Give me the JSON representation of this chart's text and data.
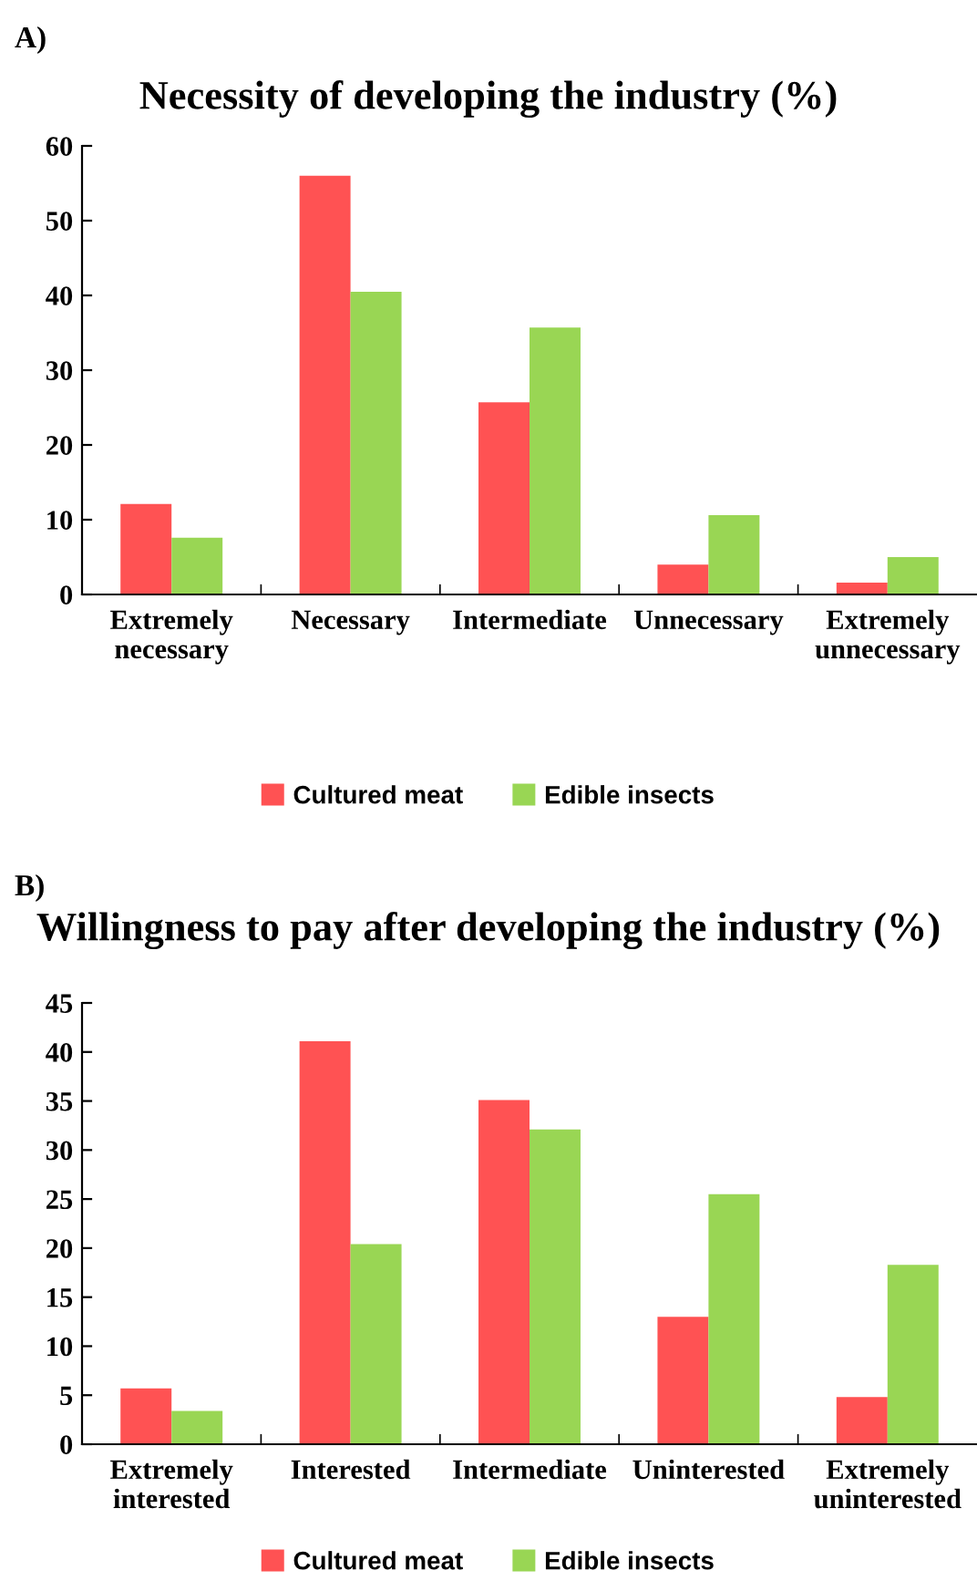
{
  "chart_data": [
    {
      "type": "bar",
      "title": "Necessity of developing the industry (%)",
      "annotations": [
        "A)"
      ],
      "categories": [
        "Extremely\nnecessary",
        "Necessary",
        "Intermediate",
        "Unnecessary",
        "Extremely\nunnecessary"
      ],
      "series": [
        {
          "name": "Cultured meat",
          "color": "#ff5253",
          "values": [
            12.1,
            56,
            25.7,
            4,
            1.6
          ]
        },
        {
          "name": "Edible insects",
          "color": "#99d654",
          "values": [
            7.6,
            40.5,
            35.7,
            10.6,
            5
          ]
        }
      ],
      "ylim": [
        0,
        60
      ],
      "yticks": [
        0,
        10,
        20,
        30,
        40,
        50,
        60
      ],
      "grid": false,
      "legend": "bottom"
    },
    {
      "type": "bar",
      "title": "Willingness to pay after developing the industry (%)",
      "annotations": [
        "B)"
      ],
      "categories": [
        "Extremely\ninterested",
        "Interested",
        "Intermediate",
        "Uninterested",
        "Extremely\nuninterested"
      ],
      "series": [
        {
          "name": "Cultured meat",
          "color": "#ff5253",
          "values": [
            5.7,
            41.1,
            35.1,
            13,
            4.8
          ]
        },
        {
          "name": "Edible insects",
          "color": "#99d654",
          "values": [
            3.4,
            20.4,
            32.1,
            25.5,
            18.3
          ]
        }
      ],
      "ylim": [
        0,
        45
      ],
      "yticks": [
        0,
        5,
        10,
        15,
        20,
        25,
        30,
        35,
        40,
        45
      ],
      "grid": false,
      "legend": "bottom"
    }
  ]
}
